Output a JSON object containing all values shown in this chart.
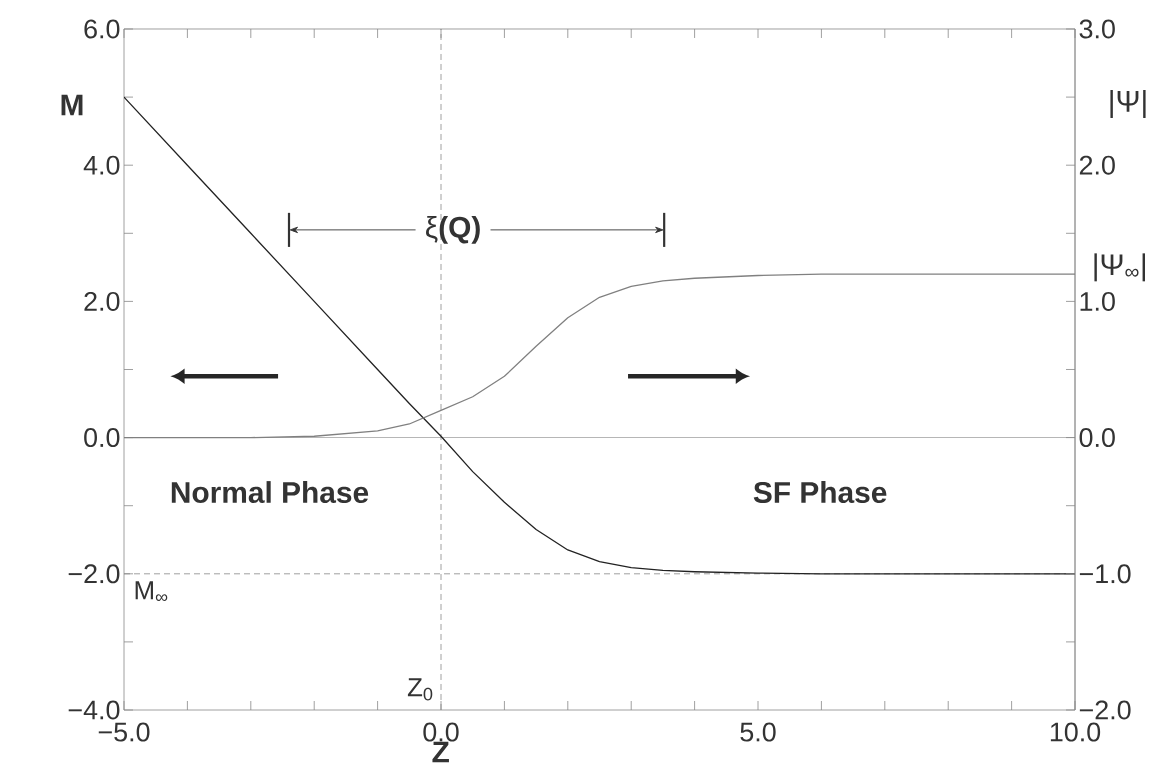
{
  "chart_data": {
    "type": "line",
    "xlabel": "Z",
    "ylabel": "M",
    "y2label": "|Ψ|",
    "x": [
      -5,
      -4,
      -3,
      -2,
      -1,
      -0.5,
      0,
      0.5,
      1,
      1.5,
      2,
      2.5,
      3,
      3.5,
      4,
      5,
      6,
      7,
      8,
      9,
      10
    ],
    "series": [
      {
        "color": "#222222",
        "values": [
          5.0,
          4.0,
          3.0,
          2.0,
          1.0,
          0.5,
          0.02,
          -0.5,
          -0.95,
          -1.35,
          -1.65,
          -1.82,
          -1.91,
          -1.95,
          -1.97,
          -1.99,
          -2.0,
          -2.0,
          -2.0,
          -2.0,
          -2.0
        ]
      },
      {
        "color": "#808080",
        "axis": "y2",
        "values": [
          0,
          0,
          0,
          0.01,
          0.05,
          0.1,
          0.2,
          0.3,
          0.45,
          0.67,
          0.88,
          1.03,
          1.11,
          1.15,
          1.17,
          1.19,
          1.2,
          1.2,
          1.2,
          1.2,
          1.2
        ]
      }
    ],
    "xlim": [
      -5,
      10
    ],
    "ylim": [
      -4,
      6
    ],
    "y2lim": [
      -2,
      3
    ],
    "xticks": [
      {
        "value": -5,
        "label": "−5.0"
      },
      {
        "value": -4,
        "label": null
      },
      {
        "value": -3,
        "label": null
      },
      {
        "value": -2,
        "label": null
      },
      {
        "value": -1,
        "label": null
      },
      {
        "value": 0,
        "label": "0.0"
      },
      {
        "value": 1,
        "label": null
      },
      {
        "value": 2,
        "label": null
      },
      {
        "value": 3,
        "label": null
      },
      {
        "value": 4,
        "label": null
      },
      {
        "value": 5,
        "label": "5.0"
      },
      {
        "value": 6,
        "label": null
      },
      {
        "value": 7,
        "label": null
      },
      {
        "value": 8,
        "label": null
      },
      {
        "value": 9,
        "label": null
      },
      {
        "value": 10,
        "label": "10.0"
      }
    ],
    "yticks": [
      {
        "value": -4,
        "label": "−4.0"
      },
      {
        "value": -3,
        "label": null
      },
      {
        "value": -2,
        "label": "−2.0"
      },
      {
        "value": -1,
        "label": null
      },
      {
        "value": 0,
        "label": "0.0"
      },
      {
        "value": 1,
        "label": null
      },
      {
        "value": 2,
        "label": "2.0"
      },
      {
        "value": 3,
        "label": null
      },
      {
        "value": 4,
        "label": "4.0"
      },
      {
        "value": 5,
        "label": null
      },
      {
        "value": 6,
        "label": "6.0"
      }
    ],
    "y2ticks": [
      {
        "value": -2,
        "label": "−2.0"
      },
      {
        "value": -1.5,
        "label": null
      },
      {
        "value": -1,
        "label": "−1.0"
      },
      {
        "value": -0.5,
        "label": null
      },
      {
        "value": 0,
        "label": "0.0"
      },
      {
        "value": 0.5,
        "label": null
      },
      {
        "value": 1,
        "label": "1.0"
      },
      {
        "value": 1.5,
        "label": null
      },
      {
        "value": 2,
        "label": "2.0"
      },
      {
        "value": 2.5,
        "label": null
      },
      {
        "value": 3,
        "label": "3.0"
      }
    ],
    "ref_lines": [
      {
        "axis": "y",
        "value": 0,
        "line_style": "solid",
        "color": "#999999"
      },
      {
        "axis": "y",
        "value": -2,
        "label": "M$_{∞}$",
        "line_style": "dashed",
        "color": "#888888"
      },
      {
        "axis": "x",
        "value": 0,
        "label": "Z$_{0}$",
        "line_style": "dashed",
        "color": "#888888"
      }
    ],
    "annotations": [
      "ξ**(Q)**",
      "**Normal Phase**",
      "**SF Phase**",
      "|Ψ$_{∞}$|"
    ],
    "marker": "none",
    "line_style": "solid"
  }
}
